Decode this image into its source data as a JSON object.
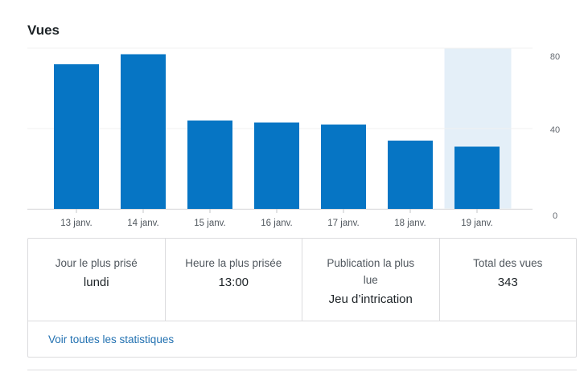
{
  "widget": {
    "title": "Vues"
  },
  "chart_data": {
    "type": "bar",
    "categories": [
      "13 janv.",
      "14 janv.",
      "15 janv.",
      "16 janv.",
      "17 janv.",
      "18 janv.",
      "19 janv."
    ],
    "values": [
      72,
      77,
      44,
      43,
      42,
      34,
      31
    ],
    "ylim": [
      0,
      80
    ],
    "y_ticks": [
      "80",
      "40",
      "0"
    ],
    "y_axis_side": "right",
    "highlighted_category": "19 janv.",
    "bar_color": "#0675c4",
    "highlight_color": "#e4eff8",
    "grid": true
  },
  "stats": [
    {
      "label": "Jour le plus prisé",
      "value": "lundi"
    },
    {
      "label": "Heure la plus prisée",
      "value": "13:00"
    },
    {
      "label": "Publication la plus lue",
      "value": "Jeu d’intrication"
    },
    {
      "label": "Total des vues",
      "value": "343"
    }
  ],
  "footer": {
    "link_label": "Voir toutes les statistiques"
  }
}
